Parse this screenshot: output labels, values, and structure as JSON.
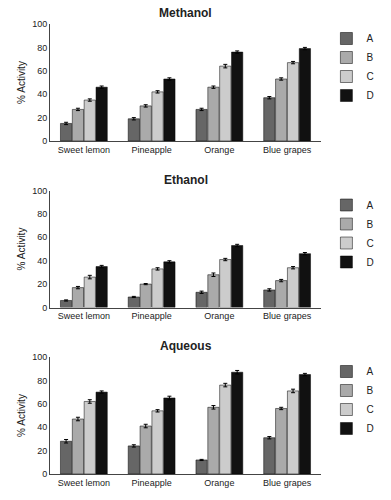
{
  "chart_data": [
    {
      "type": "bar",
      "title": "Methanol",
      "ylabel": "% Activity",
      "categories": [
        "Sweet lemon",
        "Pineapple",
        "Orange",
        "Blue grapes"
      ],
      "series": [
        {
          "name": "A",
          "color": "#666666",
          "values": [
            15,
            19,
            27,
            37
          ],
          "errors": [
            1.0,
            1.0,
            1.0,
            1.0
          ]
        },
        {
          "name": "B",
          "color": "#aaaaaa",
          "values": [
            27,
            30,
            46,
            53
          ],
          "errors": [
            1.0,
            1.0,
            1.0,
            1.0
          ]
        },
        {
          "name": "C",
          "color": "#cccccc",
          "values": [
            35,
            42,
            64,
            67
          ],
          "errors": [
            1.0,
            1.0,
            1.5,
            1.0
          ]
        },
        {
          "name": "D",
          "color": "#111111",
          "values": [
            46,
            53,
            76,
            79
          ],
          "errors": [
            1.0,
            1.0,
            1.0,
            1.0
          ]
        }
      ],
      "ylim": [
        0,
        100
      ],
      "yticks": [
        0,
        20,
        40,
        60,
        80,
        100
      ],
      "grid": false,
      "legend": "upper right"
    },
    {
      "type": "bar",
      "title": "Ethanol",
      "ylabel": "% Activity",
      "categories": [
        "Sweet lemon",
        "Pineapple",
        "Orange",
        "Blue grapes"
      ],
      "series": [
        {
          "name": "A",
          "color": "#666666",
          "values": [
            6,
            9,
            13,
            15
          ],
          "errors": [
            0.5,
            0.5,
            1.0,
            1.0
          ]
        },
        {
          "name": "B",
          "color": "#aaaaaa",
          "values": [
            17,
            20,
            28,
            23
          ],
          "errors": [
            1.0,
            0.5,
            1.5,
            1.0
          ]
        },
        {
          "name": "C",
          "color": "#cccccc",
          "values": [
            26,
            33,
            41,
            34
          ],
          "errors": [
            1.5,
            1.0,
            1.0,
            1.0
          ]
        },
        {
          "name": "D",
          "color": "#111111",
          "values": [
            35,
            39,
            53,
            46
          ],
          "errors": [
            1.0,
            1.0,
            1.0,
            1.0
          ]
        }
      ],
      "ylim": [
        0,
        100
      ],
      "yticks": [
        0,
        20,
        40,
        60,
        80,
        100
      ],
      "grid": false,
      "legend": "upper right"
    },
    {
      "type": "bar",
      "title": "Aqueous",
      "ylabel": "% Activity",
      "categories": [
        "Sweet lemon",
        "Pineapple",
        "Orange",
        "Blue grapes"
      ],
      "series": [
        {
          "name": "A",
          "color": "#666666",
          "values": [
            28,
            24,
            12,
            31
          ],
          "errors": [
            1.5,
            1.0,
            0.5,
            1.0
          ]
        },
        {
          "name": "B",
          "color": "#aaaaaa",
          "values": [
            47,
            41,
            57,
            56
          ],
          "errors": [
            1.5,
            1.5,
            1.5,
            1.0
          ]
        },
        {
          "name": "C",
          "color": "#cccccc",
          "values": [
            62,
            54,
            76,
            71
          ],
          "errors": [
            1.5,
            1.0,
            1.5,
            1.5
          ]
        },
        {
          "name": "D",
          "color": "#111111",
          "values": [
            70,
            65,
            87,
            85
          ],
          "errors": [
            1.0,
            1.5,
            1.5,
            1.0
          ]
        }
      ],
      "ylim": [
        0,
        100
      ],
      "yticks": [
        0,
        20,
        40,
        60,
        80,
        100
      ],
      "grid": false,
      "legend": "upper right"
    }
  ]
}
